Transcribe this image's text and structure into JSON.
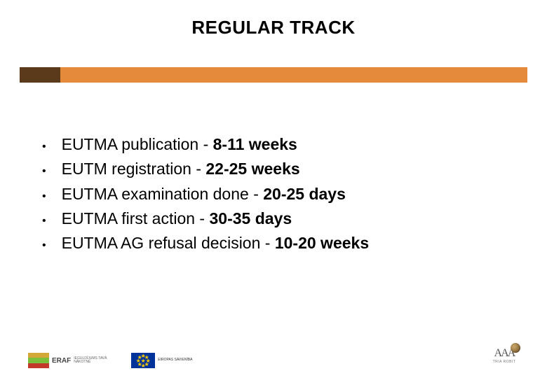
{
  "title": "REGULAR TRACK",
  "bar": {
    "dark_color": "#5a3a1a",
    "orange_color": "#e48a3a"
  },
  "bullets": [
    {
      "prefix": "EUTMA publication - ",
      "bold": "8-11 weeks"
    },
    {
      "prefix": "EUTM registration - ",
      "bold": "22-25 weeks"
    },
    {
      "prefix": "EUTMA examination done - ",
      "bold": "20-25 days"
    },
    {
      "prefix": "EUTMA  first action - ",
      "bold": "30-35 days"
    },
    {
      "prefix": "EUTMA AG refusal decision - ",
      "bold": "10-20 weeks"
    }
  ],
  "footer": {
    "eraf_label": "ERAF",
    "eraf_sub": "IEGULDĪJUMS TAVĀ NĀKOTNĒ",
    "eu_sub": "EIROPAS SAVIENĪBA",
    "aaa_label": "AAA",
    "aaa_sub": "TRIA ROBIT"
  },
  "styling": {
    "title_fontsize": 26,
    "body_fontsize": 23,
    "background": "#ffffff",
    "text_color": "#000000"
  }
}
